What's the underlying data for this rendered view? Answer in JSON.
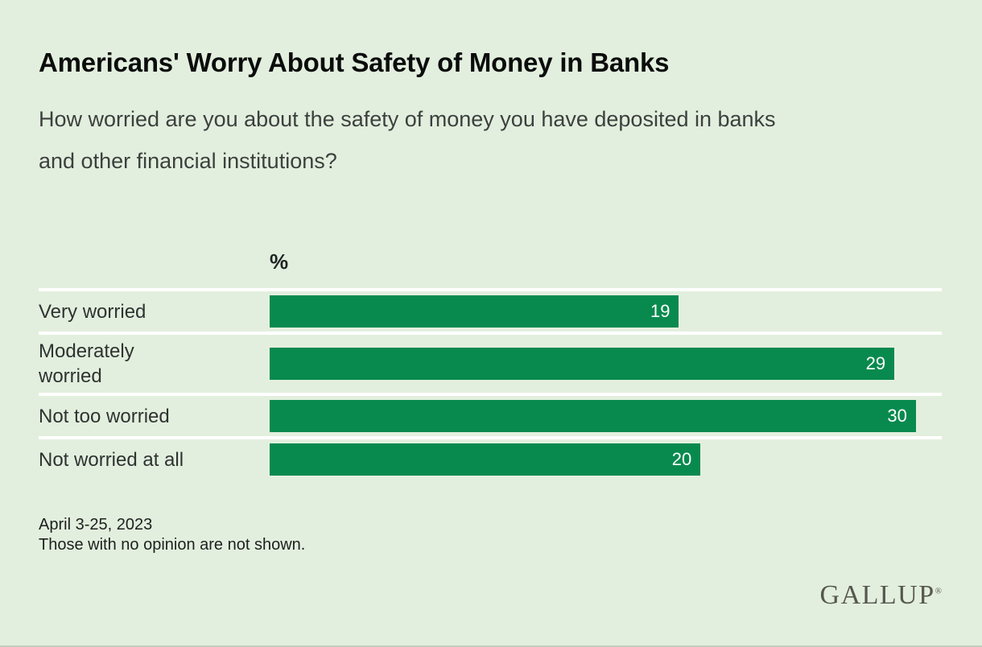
{
  "page": {
    "background_color": "#e3efde"
  },
  "chart_data": {
    "type": "bar",
    "orientation": "horizontal",
    "title": "Americans' Worry About Safety of Money in Banks",
    "subtitle": "How worried are you about the safety of money you have deposited in banks\nand other financial institutions?",
    "unit_label": "%",
    "categories": [
      "Very worried",
      "Moderately\nworried",
      "Not too worried",
      "Not worried at all"
    ],
    "values": [
      19,
      29,
      30,
      20
    ],
    "xlim": [
      0,
      31.2
    ],
    "bar_color": "#088a4e",
    "value_label_color": "#ffffff",
    "separator_color": "#ffffff",
    "grid": "off",
    "legend": "none"
  },
  "footer": {
    "date_line": "April 3-25, 2023",
    "note_line": "Those with no opinion are not shown.",
    "brand": "GALLUP",
    "registered_mark": "®"
  }
}
